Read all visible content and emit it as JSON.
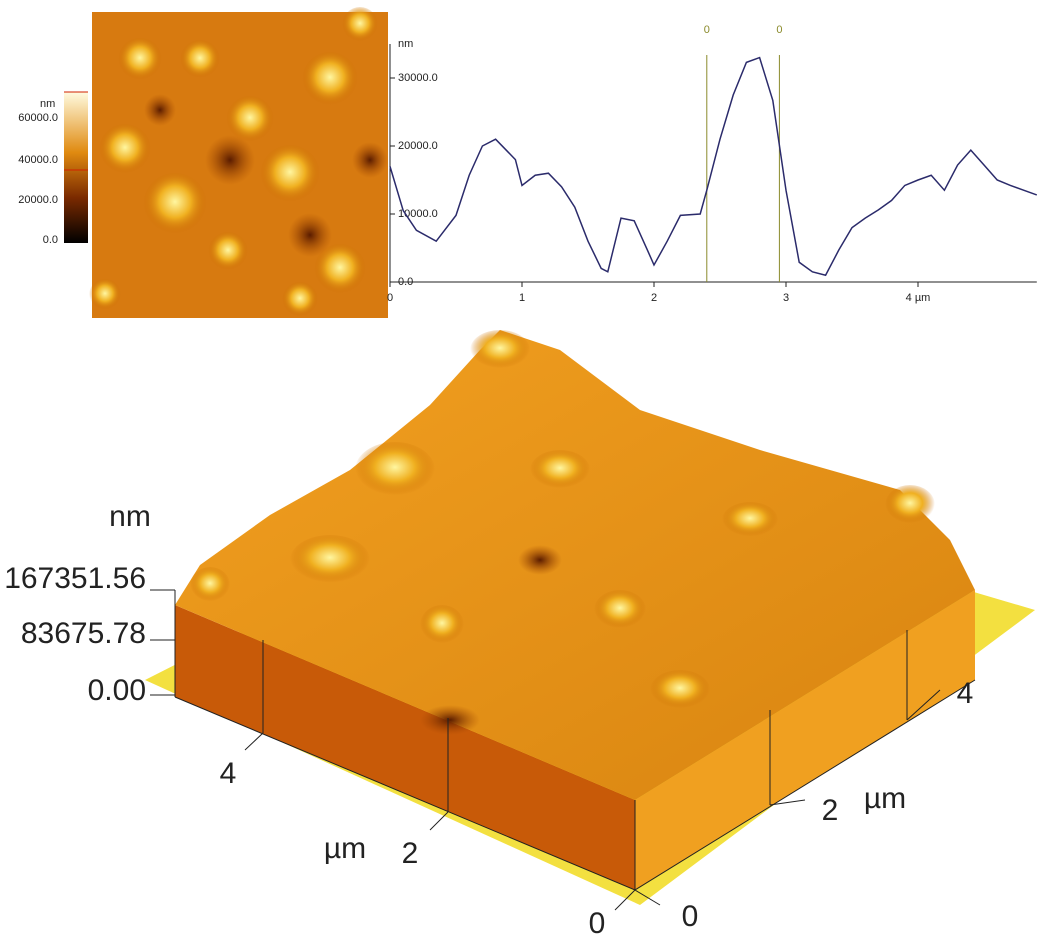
{
  "colorbar": {
    "unit": "nm",
    "ticks": [
      "60000.0",
      "40000.0",
      "20000.0",
      "0.0"
    ]
  },
  "chart_data": {
    "type": "line",
    "y_label": "nm",
    "x": [
      0,
      0.1,
      0.2,
      0.35,
      0.5,
      0.6,
      0.7,
      0.8,
      0.95,
      1.0,
      1.1,
      1.2,
      1.3,
      1.4,
      1.5,
      1.6,
      1.65,
      1.75,
      1.85,
      1.95,
      2.0,
      2.1,
      2.2,
      2.35,
      2.4,
      2.5,
      2.6,
      2.7,
      2.8,
      2.9,
      3.0,
      3.1,
      3.2,
      3.3,
      3.4,
      3.5,
      3.6,
      3.7,
      3.8,
      3.9,
      4.0,
      4.1,
      4.2,
      4.3,
      4.4,
      4.5,
      4.6,
      4.7,
      4.8,
      4.9
    ],
    "series": [
      {
        "color": "#2b2b6b",
        "values": [
          17000,
          10500,
          7600,
          6000,
          9800,
          15700,
          20000,
          21000,
          18000,
          14200,
          15700,
          16000,
          14000,
          11000,
          6000,
          2000,
          1500,
          9400,
          9000,
          4700,
          2500,
          6000,
          9800,
          10000,
          13500,
          21000,
          27500,
          32300,
          33000,
          26700,
          13500,
          2900,
          1500,
          1000,
          4700,
          8000,
          9400,
          10600,
          12000,
          14200,
          15000,
          15700,
          13500,
          17200,
          19400,
          17200,
          15000,
          14200,
          13500,
          12800
        ]
      }
    ],
    "xlim": [
      0,
      4.9
    ],
    "ylim": [
      0,
      35000
    ],
    "xticks": [
      0,
      1,
      2,
      3,
      {
        "value": 4,
        "label": "4 µm"
      }
    ],
    "yticks": [
      {
        "value": 0,
        "label": "0.0"
      },
      {
        "value": 10000,
        "label": "10000.0"
      },
      {
        "value": 20000,
        "label": "20000.0"
      },
      {
        "value": 30000,
        "label": "30000.0"
      }
    ],
    "cursors": [
      {
        "x": 2.4,
        "label": "0"
      },
      {
        "x": 2.95,
        "label": "0"
      }
    ],
    "cursor_color": "#8a8a2a"
  },
  "surface_3d": {
    "z_unit": "nm",
    "z_ticks": [
      "167351.56",
      "83675.78",
      "0.00"
    ],
    "x_axis": {
      "unit": "µm",
      "ticks": [
        "4",
        "2",
        "0"
      ]
    },
    "y_axis": {
      "unit": "µm",
      "ticks": [
        "0",
        "2",
        "4"
      ]
    }
  }
}
